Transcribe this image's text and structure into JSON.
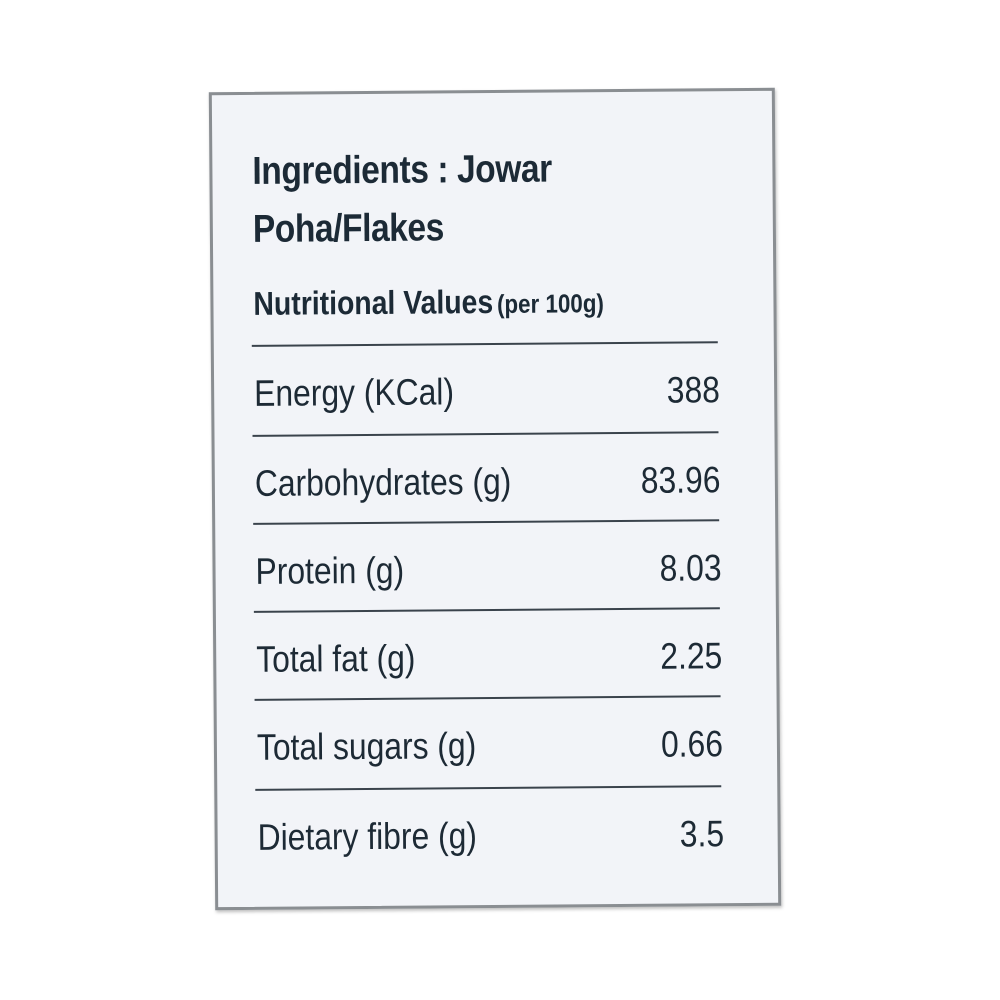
{
  "label": {
    "ingredients_line1": "Ingredients : Jowar",
    "ingredients_line2": "Poha/Flakes",
    "nutrition_heading": "Nutritional Values",
    "nutrition_unit": "(per 100g)",
    "rows": [
      {
        "name": "Energy (KCal)",
        "value": "388"
      },
      {
        "name": "Carbohydrates (g)",
        "value": "83.96"
      },
      {
        "name": "Protein (g)",
        "value": "8.03"
      },
      {
        "name": "Total fat (g)",
        "value": "2.25"
      },
      {
        "name": "Total sugars (g)",
        "value": "0.66"
      },
      {
        "name": "Dietary fibre (g)",
        "value": "3.5"
      }
    ]
  },
  "colors": {
    "card_background": "#f2f4f8",
    "card_border": "#8a8e92",
    "text": "#1d2a35",
    "rule": "#3a434c"
  }
}
